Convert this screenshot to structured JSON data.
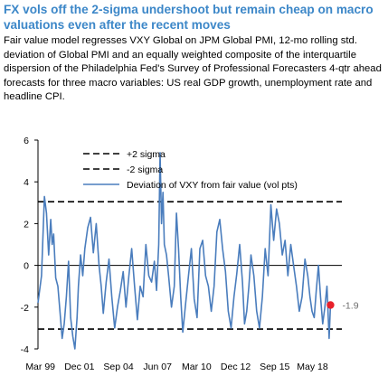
{
  "header": {
    "title": "FX vols off the 2-sigma undershoot but remain cheap on macro valuations even after the recent moves",
    "subtitle": "Fair value model regresses VXY Global on JPM Global PMI, 12-mo rolling std. deviation of Global PMI and an equally weighted composite of the interquartile dispersion of the Philadelphia Fed's Survey of Professional Forecasters 4-qtr ahead forecasts for three macro variables: US real GDP growth, unemployment rate and headline CPI."
  },
  "colors": {
    "title": "#3c87c8",
    "line": "#4a7dbd",
    "marker": "#e8202a",
    "reference": "#000000"
  },
  "chart_data": {
    "type": "line",
    "ylim": [
      -4,
      6
    ],
    "yticks": [
      -4,
      -2,
      0,
      2,
      4,
      6
    ],
    "xlim": [
      1999.0,
      2020.4
    ],
    "xticks": [
      {
        "label": "Mar 99",
        "x": 1999.17
      },
      {
        "label": "Dec 01",
        "x": 2001.92
      },
      {
        "label": "Sep 04",
        "x": 2004.67
      },
      {
        "label": "Jun 07",
        "x": 2007.42
      },
      {
        "label": "Mar 10",
        "x": 2010.17
      },
      {
        "label": "Dec 12",
        "x": 2012.92
      },
      {
        "label": "Sep 15",
        "x": 2015.67
      },
      {
        "label": "May 18",
        "x": 2018.33
      }
    ],
    "reference_lines": [
      {
        "name": "+2 sigma",
        "value": 3.05,
        "style": "dashed"
      },
      {
        "name": "-2 sigma",
        "value": -3.05,
        "style": "dashed"
      }
    ],
    "legend": [
      {
        "label": "+2 sigma",
        "style": "dashed"
      },
      {
        "label": "-2 sigma",
        "style": "dashed"
      },
      {
        "label": "Deviation of VXY from fair value (vol pts)",
        "style": "solid"
      }
    ],
    "legend_position": "top-center",
    "series": [
      {
        "name": "Deviation of VXY from fair value (vol pts)",
        "x": [
          1999.0,
          1999.25,
          1999.45,
          1999.6,
          1999.75,
          1999.9,
          2000.0,
          2000.1,
          2000.25,
          2000.4,
          2000.55,
          2000.7,
          2000.85,
          2001.0,
          2001.15,
          2001.3,
          2001.45,
          2001.6,
          2001.75,
          2001.85,
          2002.0,
          2002.15,
          2002.3,
          2002.5,
          2002.7,
          2002.9,
          2003.1,
          2003.3,
          2003.45,
          2003.6,
          2003.8,
          2004.0,
          2004.2,
          2004.4,
          2004.6,
          2004.8,
          2005.0,
          2005.2,
          2005.4,
          2005.6,
          2005.8,
          2006.0,
          2006.2,
          2006.4,
          2006.6,
          2006.8,
          2007.0,
          2007.2,
          2007.35,
          2007.5,
          2007.6,
          2007.7,
          2007.8,
          2007.9,
          2008.05,
          2008.2,
          2008.4,
          2008.6,
          2008.75,
          2008.9,
          2009.05,
          2009.2,
          2009.4,
          2009.6,
          2009.8,
          2010.0,
          2010.2,
          2010.4,
          2010.6,
          2010.8,
          2011.0,
          2011.2,
          2011.4,
          2011.6,
          2011.8,
          2012.0,
          2012.2,
          2012.4,
          2012.6,
          2012.8,
          2013.0,
          2013.2,
          2013.4,
          2013.55,
          2013.7,
          2013.85,
          2014.0,
          2014.2,
          2014.4,
          2014.6,
          2014.8,
          2015.0,
          2015.2,
          2015.4,
          2015.6,
          2015.8,
          2016.0,
          2016.2,
          2016.4,
          2016.6,
          2016.8,
          2017.0,
          2017.2,
          2017.4,
          2017.6,
          2017.8,
          2018.0,
          2018.15,
          2018.3,
          2018.45,
          2018.6,
          2018.75,
          2018.9,
          2019.05,
          2019.2,
          2019.35,
          2019.5,
          2019.6
        ],
        "values": [
          -1.8,
          -0.5,
          3.3,
          2.5,
          0.5,
          2.2,
          1.0,
          1.5,
          -0.6,
          -1.0,
          -2.2,
          -3.5,
          -2.8,
          -1.5,
          0.2,
          -2.5,
          -3.4,
          -4.0,
          -2.5,
          -1.0,
          0.5,
          -0.5,
          0.8,
          1.8,
          2.3,
          0.6,
          2.0,
          0.0,
          -1.0,
          -2.3,
          -0.8,
          0.3,
          -1.5,
          -3.0,
          -2.0,
          -1.2,
          -0.3,
          -2.0,
          -0.5,
          0.8,
          -1.0,
          -2.6,
          -1.0,
          -1.5,
          1.0,
          -0.5,
          -0.8,
          0.2,
          -1.2,
          1.0,
          5.4,
          2.0,
          3.5,
          1.0,
          0.5,
          -0.5,
          -2.0,
          -1.0,
          2.5,
          0.8,
          -1.5,
          -3.2,
          -1.8,
          -0.5,
          0.8,
          -1.6,
          -2.5,
          0.8,
          1.2,
          -0.5,
          -1.0,
          -2.2,
          -1.0,
          1.6,
          2.2,
          0.8,
          -0.3,
          -2.2,
          -3.0,
          -1.5,
          -0.4,
          1.0,
          -0.8,
          -2.8,
          -2.2,
          -1.0,
          0.5,
          -0.5,
          -2.2,
          -3.0,
          -1.5,
          0.8,
          -0.5,
          2.9,
          1.2,
          2.7,
          2.0,
          0.5,
          1.2,
          -0.5,
          1.0,
          0.0,
          -1.0,
          -2.2,
          -1.5,
          0.3,
          -0.5,
          -1.5,
          -2.2,
          -2.5,
          -1.2,
          0.0,
          -1.5,
          -2.8,
          -2.0,
          -1.0,
          -3.5,
          -1.9
        ]
      }
    ],
    "annotations": [
      {
        "label": "-1.9",
        "x": 2019.6,
        "y": -1.9,
        "marker": "dot"
      }
    ]
  }
}
